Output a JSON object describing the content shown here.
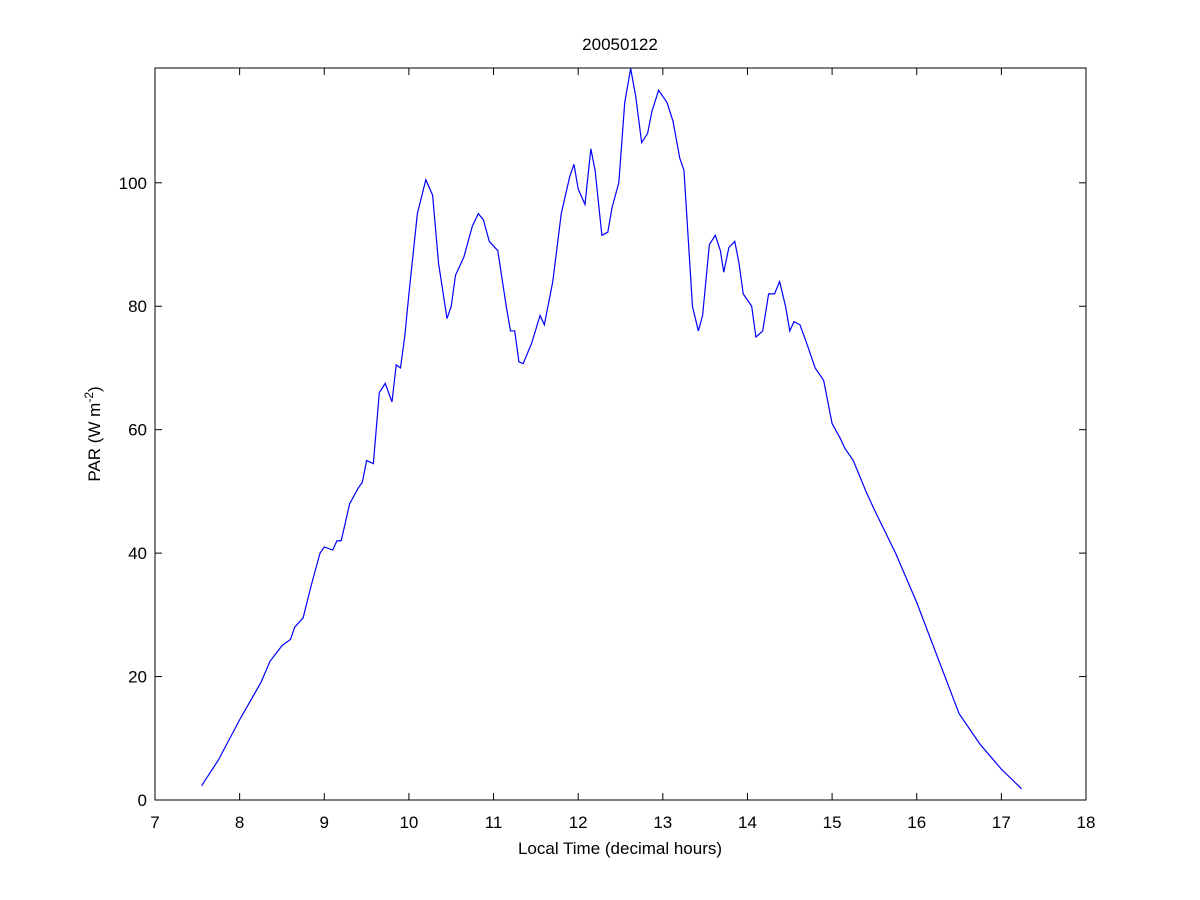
{
  "chart_data": {
    "type": "line",
    "title": "20050122",
    "xlabel": "Local Time (decimal hours)",
    "ylabel": {
      "text": "PAR (W m",
      "superscript": "-2",
      "suffix": ")"
    },
    "xlim": [
      7,
      18
    ],
    "ylim": [
      0,
      118.6
    ],
    "xticks": [
      7,
      8,
      9,
      10,
      11,
      12,
      13,
      14,
      15,
      16,
      17,
      18
    ],
    "yticks": [
      0,
      20,
      40,
      60,
      80,
      100
    ],
    "grid": false,
    "series": [
      {
        "color": "#0000ff",
        "x": [
          7.55,
          7.75,
          8.0,
          8.25,
          8.36,
          8.5,
          8.6,
          8.65,
          8.75,
          8.85,
          8.95,
          9.0,
          9.1,
          9.15,
          9.2,
          9.3,
          9.4,
          9.45,
          9.5,
          9.58,
          9.65,
          9.72,
          9.8,
          9.85,
          9.9,
          9.95,
          10.0,
          10.1,
          10.2,
          10.28,
          10.35,
          10.45,
          10.5,
          10.55,
          10.65,
          10.75,
          10.82,
          10.88,
          10.95,
          11.05,
          11.15,
          11.2,
          11.25,
          11.3,
          11.35,
          11.45,
          11.55,
          11.6,
          11.7,
          11.8,
          11.9,
          11.95,
          12.0,
          12.08,
          12.15,
          12.2,
          12.28,
          12.35,
          12.4,
          12.48,
          12.55,
          12.62,
          12.68,
          12.75,
          12.82,
          12.87,
          12.95,
          13.05,
          13.12,
          13.2,
          13.25,
          13.35,
          13.42,
          13.47,
          13.55,
          13.62,
          13.68,
          13.72,
          13.78,
          13.85,
          13.9,
          13.95,
          14.05,
          14.1,
          14.18,
          14.25,
          14.32,
          14.38,
          14.45,
          14.5,
          14.55,
          14.62,
          14.7,
          14.8,
          14.9,
          15.0,
          15.1,
          15.15,
          15.25,
          15.4,
          15.5,
          15.75,
          16.0,
          16.25,
          16.5,
          16.75,
          17.0,
          17.24
        ],
        "values": [
          2.3,
          6.5,
          13,
          19,
          22.5,
          25,
          26,
          28,
          29.5,
          35,
          40,
          41,
          40.5,
          42,
          42,
          48,
          50.5,
          51.5,
          55,
          54.5,
          66,
          67.5,
          64.5,
          70.5,
          70,
          75,
          82,
          95,
          100.5,
          98,
          87,
          78,
          80,
          85,
          88,
          93,
          95,
          94,
          90.5,
          89,
          80,
          76,
          76,
          71,
          70.7,
          74,
          78.5,
          77,
          84,
          95,
          101,
          103,
          99,
          96.5,
          105.5,
          102,
          91.5,
          92,
          96,
          100,
          113,
          118.5,
          114,
          106.5,
          108,
          111.5,
          115,
          113,
          110,
          104,
          102,
          80,
          76,
          78.5,
          90,
          91.5,
          89,
          85.5,
          89.5,
          90.5,
          87,
          82,
          80,
          75,
          76,
          82,
          82,
          84,
          80,
          76,
          77.5,
          77,
          74,
          70,
          68,
          61,
          58.5,
          57,
          55,
          50,
          47,
          40,
          32,
          23,
          14,
          9,
          5,
          1.8
        ]
      }
    ]
  }
}
